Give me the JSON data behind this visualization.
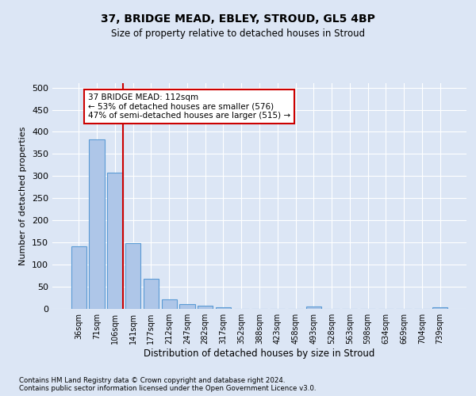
{
  "title": "37, BRIDGE MEAD, EBLEY, STROUD, GL5 4BP",
  "subtitle": "Size of property relative to detached houses in Stroud",
  "xlabel": "Distribution of detached houses by size in Stroud",
  "ylabel": "Number of detached properties",
  "footnote": "Contains HM Land Registry data © Crown copyright and database right 2024.\nContains public sector information licensed under the Open Government Licence v3.0.",
  "bar_labels": [
    "36sqm",
    "71sqm",
    "106sqm",
    "141sqm",
    "177sqm",
    "212sqm",
    "247sqm",
    "282sqm",
    "317sqm",
    "352sqm",
    "388sqm",
    "423sqm",
    "458sqm",
    "493sqm",
    "528sqm",
    "563sqm",
    "598sqm",
    "634sqm",
    "669sqm",
    "704sqm",
    "739sqm"
  ],
  "bar_values": [
    142,
    383,
    307,
    148,
    68,
    22,
    10,
    7,
    4,
    0,
    0,
    0,
    0,
    5,
    0,
    0,
    0,
    0,
    0,
    0,
    4
  ],
  "bar_color": "#aec6e8",
  "bar_edge_color": "#5b9bd5",
  "fig_bg_color": "#dce6f5",
  "plot_bg_color": "#dce6f5",
  "annotation_text": "37 BRIDGE MEAD: 112sqm\n← 53% of detached houses are smaller (576)\n47% of semi-detached houses are larger (515) →",
  "annotation_box_color": "#ffffff",
  "annotation_border_color": "#cc0000",
  "vline_color": "#cc0000",
  "vline_x": 2.43,
  "ylim": [
    0,
    510
  ],
  "yticks": [
    0,
    50,
    100,
    150,
    200,
    250,
    300,
    350,
    400,
    450,
    500
  ]
}
